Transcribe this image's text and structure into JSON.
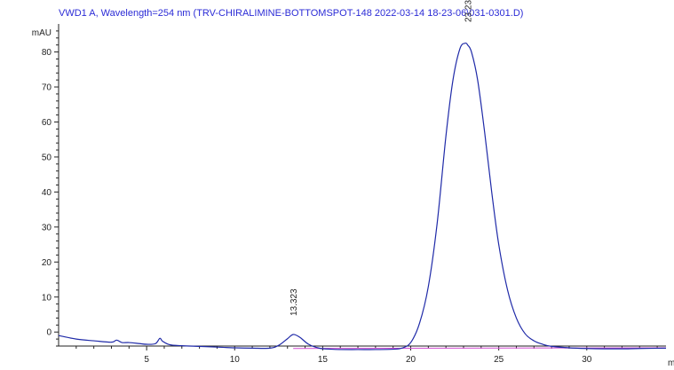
{
  "chart_data": {
    "type": "line",
    "title": "VWD1 A, Wavelength=254 nm (TRV-CHIRALIMINE-BOTTOMSPOT-148 2022-03-14 18-23-06\\031-0301.D)",
    "ylabel": "mAU",
    "xlabel_partial": "m",
    "xlim": [
      0,
      34.5
    ],
    "ylim": [
      -4,
      88
    ],
    "x_ticks": [
      5,
      10,
      15,
      20,
      25,
      30
    ],
    "y_ticks": [
      0,
      10,
      20,
      30,
      40,
      50,
      60,
      70,
      80
    ],
    "peak_labels": [
      {
        "x": 13.323,
        "label": "13.323",
        "height": 4.1
      },
      {
        "x": 23.231,
        "label": "23.231",
        "height": 88.0
      }
    ],
    "series": [
      {
        "color": "#1f2aa8",
        "x": [
          0,
          1,
          2,
          3,
          3.3,
          3.6,
          4,
          4.6,
          5,
          5.5,
          5.75,
          5.9,
          6.3,
          7,
          8,
          9,
          10,
          11,
          12,
          12.5,
          13,
          13.323,
          13.7,
          14.2,
          14.8,
          15.5,
          16,
          17,
          18,
          19,
          19.5,
          20,
          20.5,
          21,
          21.5,
          22,
          22.4,
          22.8,
          23.1,
          23.231,
          23.45,
          23.8,
          24.2,
          24.6,
          25,
          25.5,
          26,
          26.5,
          27,
          27.5,
          28,
          29,
          30,
          31,
          32,
          33,
          34.5
        ],
        "y": [
          -1.0,
          -2.0,
          -2.5,
          -2.9,
          -2.3,
          -3.0,
          -3.0,
          -3.3,
          -3.5,
          -3.3,
          -1.8,
          -2.6,
          -3.6,
          -3.9,
          -4.1,
          -4.3,
          -4.5,
          -4.6,
          -4.6,
          -3.8,
          -1.9,
          -0.7,
          -1.5,
          -3.5,
          -4.6,
          -4.9,
          -5.0,
          -5.0,
          -5.0,
          -4.9,
          -4.6,
          -3.0,
          2.5,
          13.0,
          31.0,
          56.0,
          72.0,
          81.0,
          82.5,
          82.0,
          80.0,
          72.0,
          57.0,
          40.0,
          25.0,
          12.0,
          4.0,
          -0.5,
          -2.5,
          -3.5,
          -4.1,
          -4.5,
          -4.7,
          -4.8,
          -4.8,
          -4.7,
          -4.6
        ]
      }
    ],
    "baseline": {
      "color": "#d24fd2",
      "x": [
        13.323,
        34.5
      ],
      "y": [
        -4.7,
        -4.5
      ]
    },
    "grid": false,
    "legend": "none"
  }
}
